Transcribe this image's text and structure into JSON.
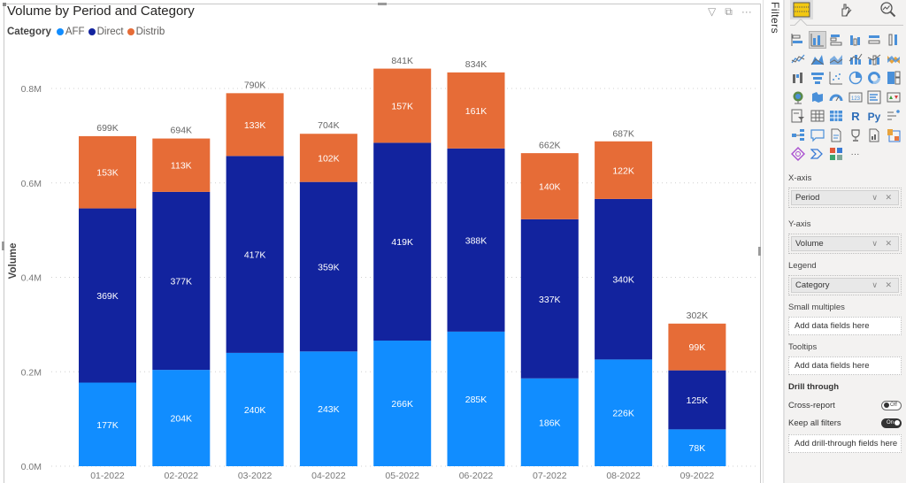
{
  "visual": {
    "title": "Volume by Period and Category",
    "header_icons": [
      "filter-icon",
      "focus-mode-icon",
      "more-options-icon"
    ],
    "header_glyphs": [
      "▽",
      "⧉",
      "···"
    ]
  },
  "legend": {
    "title": "Category",
    "items": [
      {
        "label": "AFF",
        "color": "#118dff"
      },
      {
        "label": "Direct",
        "color": "#12239e"
      },
      {
        "label": "Distrib",
        "color": "#e66c37"
      }
    ]
  },
  "chart_data": {
    "type": "bar",
    "stacked": true,
    "title": "Volume by Period and Category",
    "xlabel": "",
    "ylabel": "Volume",
    "ylim": [
      0,
      0.8
    ],
    "y_unit": "M",
    "yticks": [
      0.0,
      0.2,
      0.4,
      0.6,
      0.8
    ],
    "ytick_labels": [
      "0.0M",
      "0.2M",
      "0.4M",
      "0.6M",
      "0.8M"
    ],
    "grid": true,
    "legend_position": "top-left",
    "categories": [
      "01-2022",
      "02-2022",
      "03-2022",
      "04-2022",
      "05-2022",
      "06-2022",
      "07-2022",
      "08-2022",
      "09-2022"
    ],
    "series": [
      {
        "name": "AFF",
        "color": "#118dff",
        "values": [
          177,
          204,
          240,
          243,
          266,
          285,
          186,
          226,
          78
        ],
        "labels": [
          "177K",
          "204K",
          "240K",
          "243K",
          "266K",
          "285K",
          "186K",
          "226K",
          "78K"
        ]
      },
      {
        "name": "Direct",
        "color": "#12239e",
        "values": [
          369,
          377,
          417,
          359,
          419,
          388,
          337,
          340,
          125
        ],
        "labels": [
          "369K",
          "377K",
          "417K",
          "359K",
          "419K",
          "388K",
          "337K",
          "340K",
          "125K"
        ]
      },
      {
        "name": "Distrib",
        "color": "#e66c37",
        "values": [
          153,
          113,
          133,
          102,
          157,
          161,
          140,
          122,
          99
        ],
        "labels": [
          "153K",
          "113K",
          "133K",
          "102K",
          "157K",
          "161K",
          "140K",
          "122K",
          "99K"
        ]
      }
    ],
    "value_unit": "K",
    "totals": [
      699,
      694,
      790,
      704,
      841,
      834,
      662,
      687,
      302
    ],
    "total_labels": [
      "699K",
      "694K",
      "790K",
      "704K",
      "841K",
      "834K",
      "662K",
      "687K",
      "302K"
    ]
  },
  "filters_pane": {
    "label": "Filters"
  },
  "viz_pane": {
    "tabs": [
      {
        "name": "build-visual",
        "selected": true
      },
      {
        "name": "format-visual",
        "selected": false
      },
      {
        "name": "analytics",
        "selected": false
      }
    ],
    "visual_types": [
      "stacked-bar-chart",
      "stacked-column-chart",
      "clustered-bar-chart",
      "clustered-column-chart",
      "100-stacked-bar-chart",
      "100-stacked-column-chart",
      "line-chart",
      "area-chart",
      "stacked-area-chart",
      "line-and-stacked-column-chart",
      "line-and-clustered-column-chart",
      "ribbon-chart",
      "waterfall-chart",
      "funnel-chart",
      "scatter-chart",
      "pie-chart",
      "donut-chart",
      "treemap",
      "map",
      "filled-map",
      "gauge",
      "card",
      "multi-row-card",
      "kpi",
      "slicer",
      "table",
      "matrix",
      "r-script-visual",
      "python-visual",
      "key-influencers",
      "decomposition-tree",
      "q-and-a",
      "smart-narrative",
      "metrics",
      "paginated-report",
      "power-apps",
      "power-automate",
      "power-automate-flow",
      "app-source-visuals",
      "more-visuals"
    ],
    "selected_visual": "stacked-column-chart",
    "r_label": "R",
    "py_label": "Py",
    "more_label": "···",
    "card_label": "123",
    "wells": {
      "x_axis": {
        "title": "X-axis",
        "field": "Period"
      },
      "y_axis": {
        "title": "Y-axis",
        "field": "Volume"
      },
      "legend": {
        "title": "Legend",
        "field": "Category"
      },
      "small_multiples": {
        "title": "Small multiples",
        "placeholder": "Add data fields here"
      },
      "tooltips": {
        "title": "Tooltips",
        "placeholder": "Add data fields here"
      }
    },
    "drill_through": {
      "title": "Drill through",
      "cross_report": {
        "label": "Cross-report",
        "state": "Off"
      },
      "keep_all_filters": {
        "label": "Keep all filters",
        "state": "On"
      },
      "placeholder": "Add drill-through fields here"
    },
    "field_actions": "∨ ✕"
  }
}
